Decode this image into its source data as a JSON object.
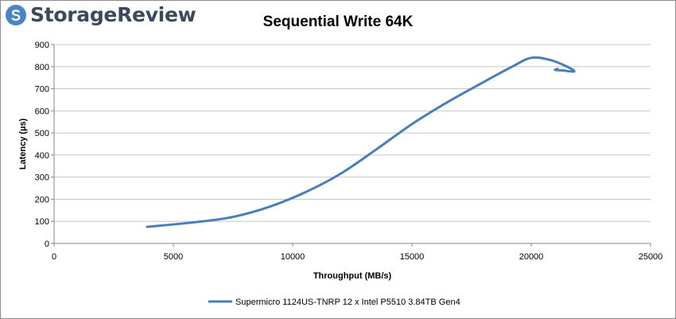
{
  "brand": {
    "name": "StorageReview",
    "logo_icon": "storagereview-logo-icon",
    "color": "#3a4a5c",
    "accent": "#4a86c5"
  },
  "chart_data": {
    "type": "line",
    "title": "Sequential Write 64K",
    "xlabel": "Throughput (MB/s)",
    "ylabel": "Latency (µs)",
    "xlim": [
      0,
      25000
    ],
    "ylim": [
      0,
      900
    ],
    "xticks": [
      "0",
      "5000",
      "10000",
      "15000",
      "20000",
      "25000"
    ],
    "yticks": [
      "0",
      "100",
      "200",
      "300",
      "400",
      "500",
      "600",
      "700",
      "800",
      "900"
    ],
    "grid": "horizontal",
    "legend_position": "bottom",
    "series": [
      {
        "name": "Supermicro 1124US-TNRP 12 x Intel P5510 3.84TB Gen4",
        "color": "#4a7ebb",
        "x": [
          3900,
          6000,
          7500,
          9000,
          10500,
          12000,
          13500,
          15000,
          16500,
          18000,
          19200,
          20000,
          20800,
          21500,
          21800,
          21300,
          21000,
          21100
        ],
        "y": [
          75,
          97,
          120,
          165,
          230,
          315,
          425,
          540,
          640,
          730,
          800,
          840,
          830,
          800,
          778,
          783,
          785,
          790
        ]
      }
    ]
  }
}
